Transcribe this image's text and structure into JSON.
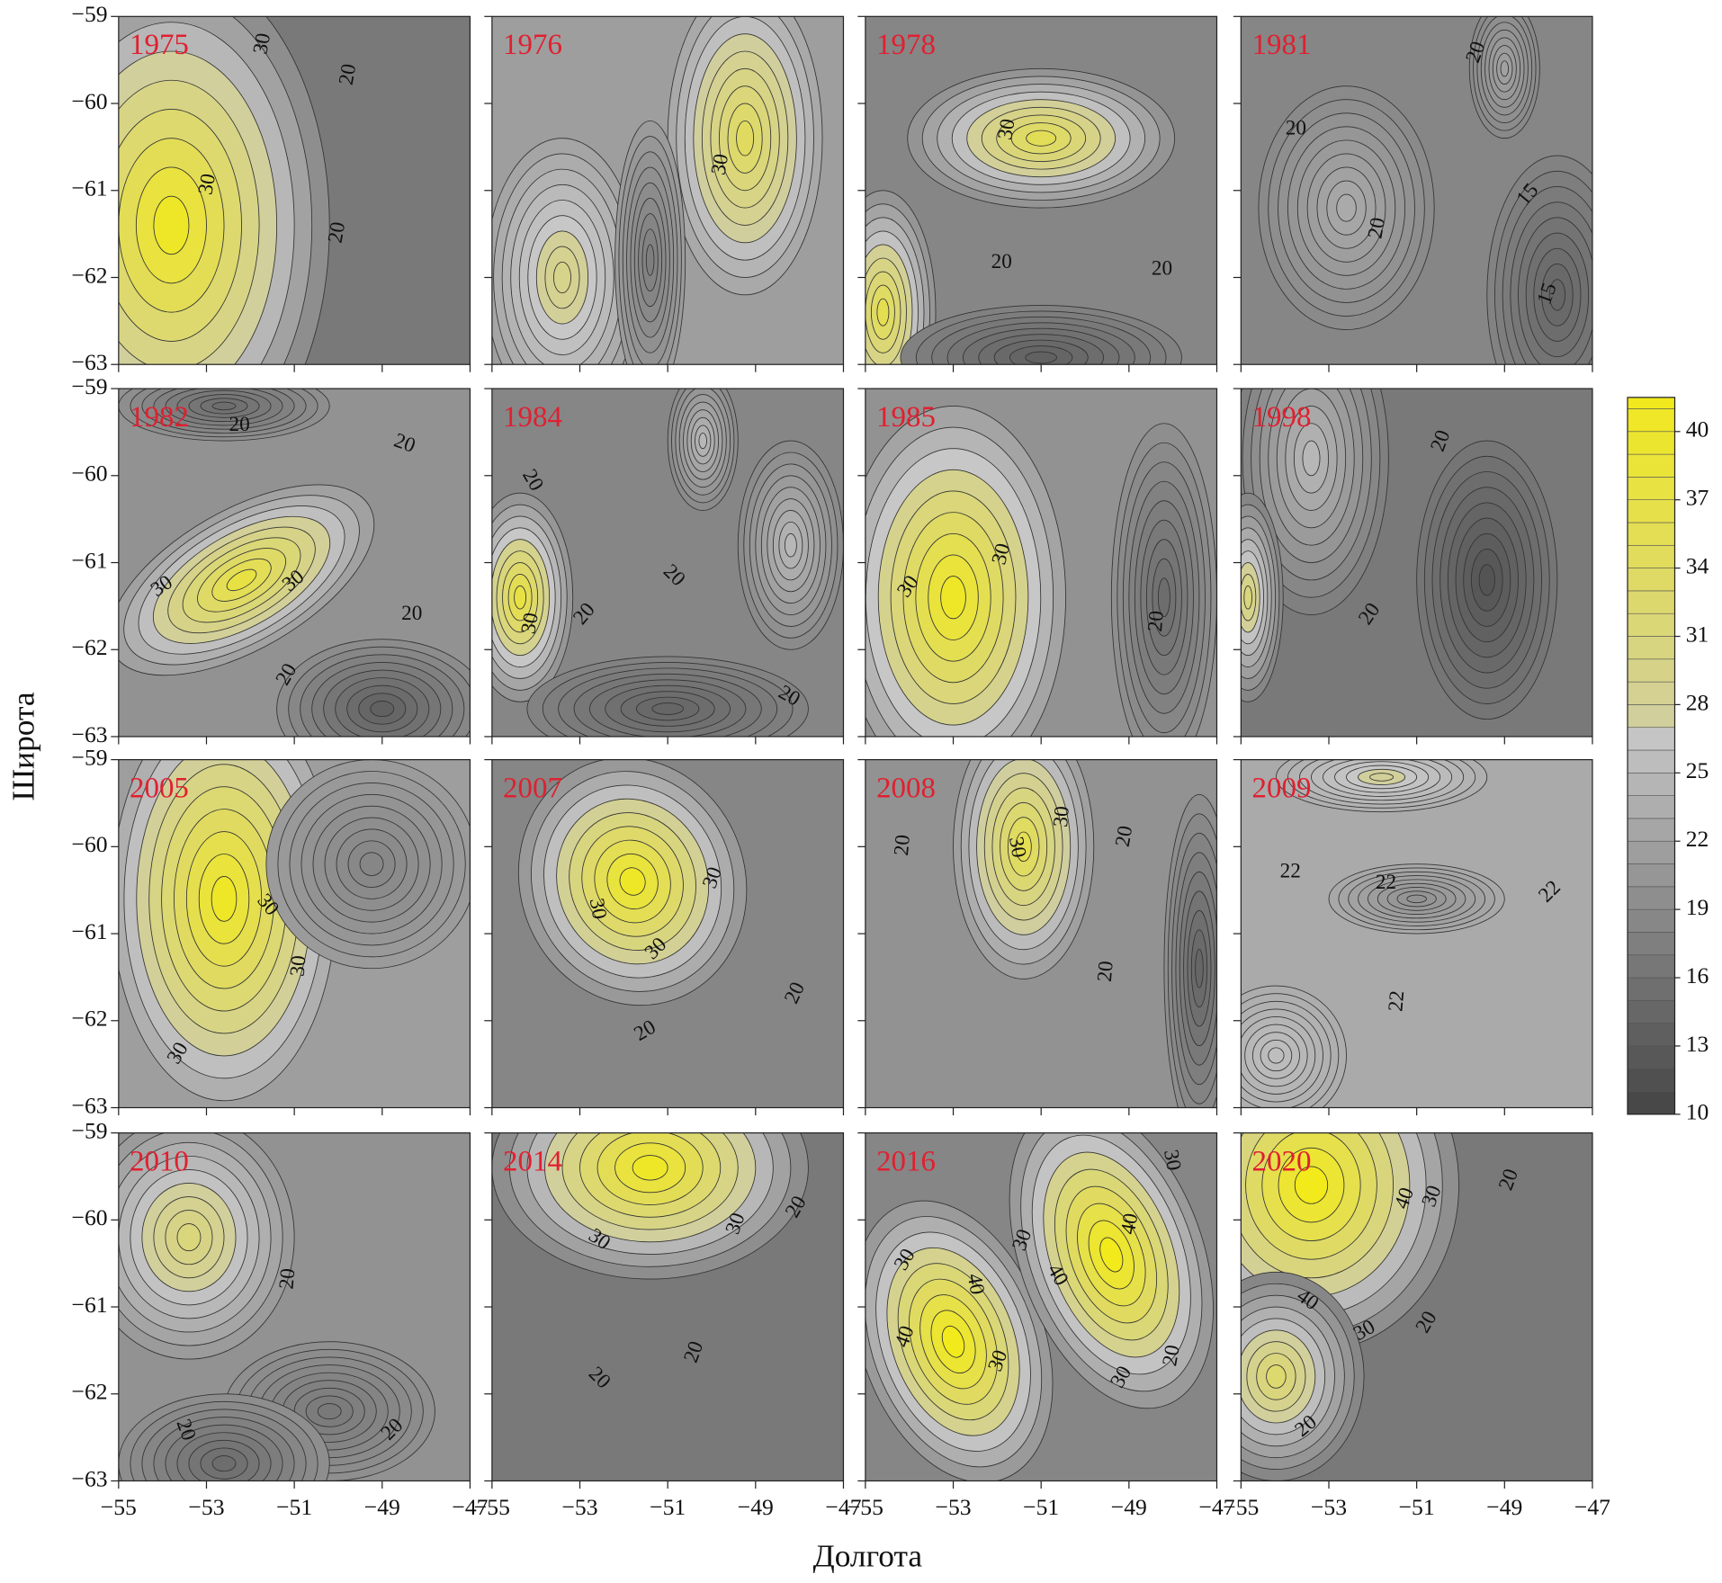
{
  "chart_data": {
    "type": "contour",
    "x_label": "Долгота",
    "y_label": "Широта",
    "xlim": [
      -55,
      -47
    ],
    "ylim": [
      -63,
      -59
    ],
    "xticks": [
      {
        "value": -55,
        "label": "−55"
      },
      {
        "value": -53,
        "label": "−53"
      },
      {
        "value": -51,
        "label": "−51"
      },
      {
        "value": -49,
        "label": "−49"
      },
      {
        "value": -47,
        "label": "−47"
      }
    ],
    "yticks": [
      {
        "value": -59,
        "label": "−59"
      },
      {
        "value": -60,
        "label": "−60"
      },
      {
        "value": -61,
        "label": "−61"
      },
      {
        "value": -62,
        "label": "−62"
      },
      {
        "value": -63,
        "label": "−63"
      }
    ],
    "colorbar": {
      "lim": [
        10,
        41.5
      ],
      "ticks": [
        10,
        13,
        16,
        19,
        22,
        25,
        28,
        31,
        34,
        37,
        40
      ]
    },
    "panels": [
      {
        "title": "1975",
        "contour_labels": [
          30,
          20,
          30,
          20
        ]
      },
      {
        "title": "1976",
        "contour_labels": [
          30
        ]
      },
      {
        "title": "1978",
        "contour_labels": [
          30,
          20,
          20
        ]
      },
      {
        "title": "1981",
        "contour_labels": [
          20,
          20,
          20,
          15,
          15
        ]
      },
      {
        "title": "1982",
        "contour_labels": [
          20,
          20,
          30,
          30,
          20,
          20
        ]
      },
      {
        "title": "1984",
        "contour_labels": [
          20,
          30,
          20,
          20,
          20
        ]
      },
      {
        "title": "1985",
        "contour_labels": [
          30,
          30,
          20
        ]
      },
      {
        "title": "1998",
        "contour_labels": [
          20,
          20
        ]
      },
      {
        "title": "2005",
        "contour_labels": [
          30,
          30,
          30
        ]
      },
      {
        "title": "2007",
        "contour_labels": [
          30,
          30,
          30,
          20,
          20
        ]
      },
      {
        "title": "2008",
        "contour_labels": [
          20,
          30,
          30,
          20,
          20
        ]
      },
      {
        "title": "2009",
        "contour_labels": [
          22,
          22,
          22,
          22
        ]
      },
      {
        "title": "2010",
        "contour_labels": [
          20,
          20,
          20
        ]
      },
      {
        "title": "2014",
        "contour_labels": [
          30,
          30,
          20,
          20,
          20
        ]
      },
      {
        "title": "2016",
        "contour_labels": [
          30,
          40,
          30,
          40,
          30,
          40,
          40,
          30,
          30,
          20
        ]
      },
      {
        "title": "2020",
        "contour_labels": [
          40,
          30,
          20,
          40,
          30,
          20,
          20
        ]
      }
    ]
  }
}
